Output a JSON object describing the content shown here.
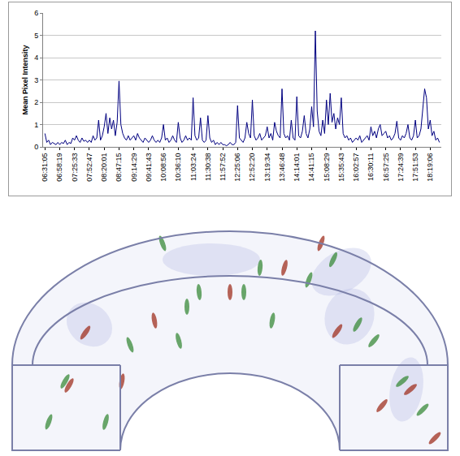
{
  "chart_data": {
    "type": "line",
    "y_label": "Mean Pixel Intensity",
    "color": "#000080",
    "ylim": [
      0,
      6
    ],
    "yticks": [
      0,
      1,
      2,
      3,
      4,
      5,
      6
    ],
    "grid": true,
    "categories": [
      "06:31:05",
      null,
      null,
      null,
      null,
      null,
      null,
      null,
      "06:58:19",
      null,
      null,
      null,
      null,
      null,
      null,
      null,
      "07:25:33",
      null,
      null,
      null,
      null,
      null,
      null,
      null,
      "07:52:47",
      null,
      null,
      null,
      null,
      null,
      null,
      null,
      "08:20:01",
      null,
      null,
      null,
      null,
      null,
      null,
      null,
      "08:47:15",
      null,
      null,
      null,
      null,
      null,
      null,
      null,
      "09:14:29",
      null,
      null,
      null,
      null,
      null,
      null,
      null,
      "09:41:43",
      null,
      null,
      null,
      null,
      null,
      null,
      null,
      "10:08:56",
      null,
      null,
      null,
      null,
      null,
      null,
      null,
      "10:36:10",
      null,
      null,
      null,
      null,
      null,
      null,
      null,
      "11:03:24",
      null,
      null,
      null,
      null,
      null,
      null,
      null,
      "11:30:38",
      null,
      null,
      null,
      null,
      null,
      null,
      null,
      "11:57:52",
      null,
      null,
      null,
      null,
      null,
      null,
      null,
      "12:25:06",
      null,
      null,
      null,
      null,
      null,
      null,
      null,
      "12:52:20",
      null,
      null,
      null,
      null,
      null,
      null,
      null,
      "13:19:34",
      null,
      null,
      null,
      null,
      null,
      null,
      null,
      "13:46:48",
      null,
      null,
      null,
      null,
      null,
      null,
      null,
      "14:14:01",
      null,
      null,
      null,
      null,
      null,
      null,
      null,
      "14:41:15",
      null,
      null,
      null,
      null,
      null,
      null,
      null,
      "15:08:29",
      null,
      null,
      null,
      null,
      null,
      null,
      null,
      "15:35:43",
      null,
      null,
      null,
      null,
      null,
      null,
      null,
      "16:02:57",
      null,
      null,
      null,
      null,
      null,
      null,
      null,
      "16:30:11",
      null,
      null,
      null,
      null,
      null,
      null,
      null,
      "16:57:25",
      null,
      null,
      null,
      null,
      null,
      null,
      null,
      "17:24:39",
      null,
      null,
      null,
      null,
      null,
      null,
      null,
      "17:51:53",
      null,
      null,
      null,
      null,
      null,
      null,
      null,
      "18:19:06",
      null,
      null,
      null,
      null,
      null
    ],
    "values": [
      0.6,
      0.2,
      0.3,
      0.1,
      0.2,
      0.15,
      0.1,
      0.2,
      0.1,
      0.2,
      0.15,
      0.3,
      0.1,
      0.2,
      0.15,
      0.4,
      0.3,
      0.5,
      0.3,
      0.2,
      0.4,
      0.25,
      0.3,
      0.2,
      0.3,
      0.2,
      0.5,
      0.3,
      0.4,
      1.2,
      0.3,
      0.5,
      0.9,
      1.5,
      0.6,
      1.3,
      0.8,
      1.2,
      0.5,
      1.1,
      2.95,
      1.0,
      0.6,
      0.4,
      0.3,
      0.5,
      0.3,
      0.4,
      0.5,
      0.3,
      0.6,
      0.4,
      0.3,
      0.2,
      0.4,
      0.3,
      0.2,
      0.3,
      0.5,
      0.3,
      0.2,
      0.3,
      0.2,
      0.4,
      1.0,
      0.3,
      0.4,
      0.2,
      0.3,
      0.5,
      0.3,
      0.2,
      1.1,
      0.4,
      0.2,
      0.3,
      0.5,
      0.3,
      0.4,
      0.3,
      2.2,
      0.5,
      0.3,
      0.4,
      1.3,
      0.3,
      0.2,
      0.3,
      1.4,
      0.4,
      0.2,
      0.3,
      0.1,
      0.2,
      0.1,
      0.2,
      0.1,
      0.1,
      0.05,
      0.1,
      0.2,
      0.1,
      0.1,
      0.2,
      1.85,
      0.4,
      0.3,
      0.2,
      0.4,
      1.1,
      0.6,
      0.4,
      2.1,
      0.5,
      0.3,
      0.4,
      0.6,
      0.3,
      0.4,
      0.5,
      0.9,
      0.4,
      0.6,
      0.3,
      1.1,
      0.7,
      0.5,
      0.4,
      2.6,
      0.6,
      0.4,
      0.5,
      0.3,
      1.2,
      0.4,
      0.3,
      2.25,
      0.5,
      0.4,
      0.7,
      1.4,
      0.6,
      0.4,
      0.8,
      1.8,
      0.9,
      5.2,
      1.6,
      0.7,
      0.5,
      1.2,
      0.6,
      2.1,
      1.0,
      2.4,
      1.1,
      1.5,
      0.8,
      1.3,
      1.0,
      2.2,
      0.6,
      0.4,
      0.5,
      0.3,
      0.4,
      0.2,
      0.3,
      0.4,
      0.3,
      0.5,
      0.2,
      0.3,
      0.4,
      0.5,
      0.3,
      0.9,
      0.5,
      0.7,
      0.4,
      0.8,
      1.0,
      0.5,
      0.6,
      0.7,
      0.4,
      0.5,
      0.3,
      0.4,
      0.6,
      1.15,
      0.4,
      0.3,
      0.5,
      0.4,
      0.6,
      1.0,
      0.4,
      0.3,
      0.5,
      1.2,
      0.4,
      0.5,
      0.8,
      1.8,
      2.6,
      2.2,
      0.8,
      1.2,
      0.5,
      0.7,
      0.3,
      0.4,
      0.2
    ]
  }
}
